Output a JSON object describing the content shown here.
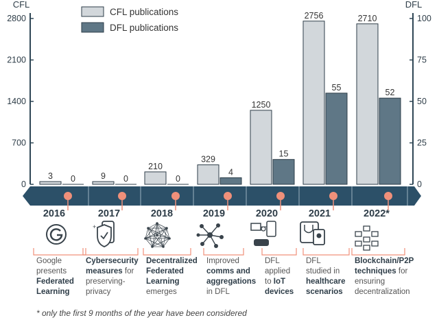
{
  "chart_data": {
    "type": "bar",
    "categories": [
      "2016",
      "2017",
      "2018",
      "2019",
      "2020",
      "2021",
      "2022*"
    ],
    "series": [
      {
        "name": "CFL publications",
        "axis": "left",
        "color": "#d2d7db",
        "values": [
          3,
          9,
          210,
          329,
          1250,
          2756,
          2710
        ],
        "labels": [
          "3",
          "9",
          "210",
          "329",
          "1250",
          "2756",
          "2710"
        ]
      },
      {
        "name": "DFL publications",
        "axis": "right",
        "color": "#5f7786",
        "values": [
          0,
          0,
          0,
          4,
          15,
          55,
          52
        ],
        "labels": [
          "0",
          "0",
          "0",
          "4",
          "15",
          "55",
          "52"
        ]
      }
    ],
    "ylabel_left": "CFL",
    "ylabel_right": "DFL",
    "ylim_left": [
      0,
      2800
    ],
    "ylim_right": [
      0,
      100
    ],
    "yticks_left": [
      "0",
      "700",
      "1400",
      "2100",
      "2800"
    ],
    "yticks_right": [
      "0",
      "25",
      "50",
      "75",
      "100"
    ],
    "legend_position": "top-left",
    "grid": false
  },
  "timeline": {
    "years": [
      "2016",
      "2017",
      "2018",
      "2019",
      "2020",
      "2021",
      "2022*"
    ],
    "events": [
      {
        "icon": "google-g-icon",
        "lines": [
          [
            [
              "Google",
              false
            ]
          ],
          [
            [
              "presents",
              false
            ]
          ],
          [
            [
              "Federated",
              true
            ]
          ],
          [
            [
              "Learning",
              true
            ]
          ]
        ]
      },
      {
        "icon": "shield-phone-icon",
        "lines": [
          [
            [
              "Cybersecurity",
              true
            ]
          ],
          [
            [
              "measures",
              true
            ],
            [
              " for",
              false
            ]
          ],
          [
            [
              "preserving-",
              false
            ]
          ],
          [
            [
              "privacy",
              false
            ]
          ]
        ]
      },
      {
        "icon": "network-sphere-icon",
        "lines": [
          [
            [
              "Decentralized",
              true
            ]
          ],
          [
            [
              "Federated",
              true
            ]
          ],
          [
            [
              "Learning",
              true
            ]
          ],
          [
            [
              "emerges",
              false
            ]
          ]
        ]
      },
      {
        "icon": "node-graph-icon",
        "lines": [
          [
            [
              "Improved",
              false
            ]
          ],
          [
            [
              "comms and",
              true
            ]
          ],
          [
            [
              "aggregations",
              true
            ]
          ],
          [
            [
              "in DFL",
              false
            ]
          ]
        ]
      },
      {
        "icon": "iot-devices-icon",
        "lines": [
          [
            [
              "DFL",
              false
            ]
          ],
          [
            [
              "applied",
              false
            ]
          ],
          [
            [
              "to ",
              false
            ],
            [
              "IoT",
              true
            ]
          ],
          [
            [
              "devices",
              true
            ]
          ]
        ]
      },
      {
        "icon": "healthcare-devices-icon",
        "lines": [
          [
            [
              "DFL",
              false
            ]
          ],
          [
            [
              "studied in",
              false
            ]
          ],
          [
            [
              "healthcare",
              true
            ]
          ],
          [
            [
              "scenarios",
              true
            ]
          ]
        ]
      },
      {
        "icon": "blockchain-cubes-icon",
        "lines": [
          [
            [
              "Blockchain/P2P",
              true
            ]
          ],
          [
            [
              "techniques",
              true
            ],
            [
              " for",
              false
            ]
          ],
          [
            [
              "ensuring",
              false
            ]
          ],
          [
            [
              "decentralization",
              false
            ]
          ]
        ]
      }
    ]
  },
  "colors": {
    "cfl": "#d2d7db",
    "dfl": "#5f7786",
    "band": "#2c5068",
    "accent": "#f0907a",
    "axis": "#2e4655"
  },
  "footnote": "* only the first 9 months of the year have been considered"
}
